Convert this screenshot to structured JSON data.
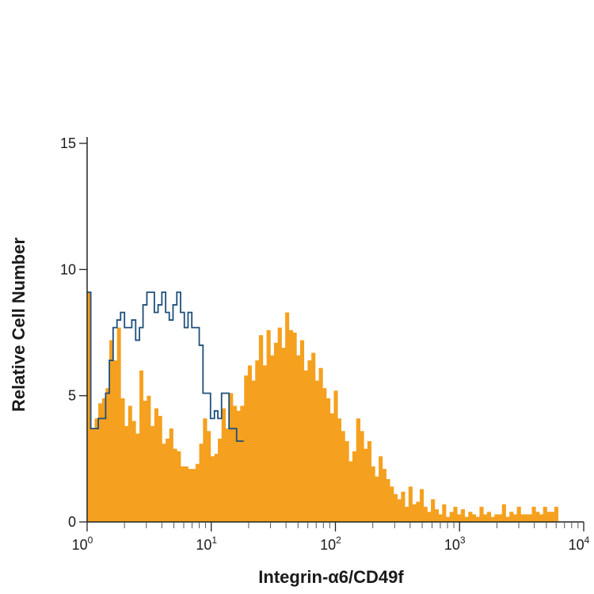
{
  "chart_data": {
    "type": "histogram",
    "xlabel": "Integrin-α6/CD49f",
    "ylabel": "Relative Cell Number",
    "x_scale": "log",
    "xlim": [
      1,
      10000
    ],
    "ylim": [
      0,
      15
    ],
    "x_ticks": [
      {
        "base": "10",
        "exp": "0",
        "value": 1
      },
      {
        "base": "10",
        "exp": "1",
        "value": 10
      },
      {
        "base": "10",
        "exp": "2",
        "value": 100
      },
      {
        "base": "10",
        "exp": "3",
        "value": 1000
      },
      {
        "base": "10",
        "exp": "4",
        "value": 10000
      }
    ],
    "y_ticks": [
      {
        "label": "0",
        "value": 0
      },
      {
        "label": "5",
        "value": 5
      },
      {
        "label": "10",
        "value": 10
      },
      {
        "label": "15",
        "value": 15
      }
    ],
    "grid": false,
    "legend": "none",
    "series": [
      {
        "style": "filled",
        "color": "#F5A01E",
        "x": [
          1.0,
          1.07,
          1.15,
          1.23,
          1.32,
          1.41,
          1.51,
          1.62,
          1.74,
          1.86,
          2.0,
          2.14,
          2.29,
          2.46,
          2.64,
          2.82,
          3.03,
          3.24,
          3.48,
          3.73,
          4.0,
          4.29,
          4.59,
          4.92,
          5.28,
          5.66,
          6.07,
          6.5,
          6.97,
          7.47,
          8.0,
          8.58,
          9.2,
          9.86,
          10.6,
          11.3,
          12.1,
          13.0,
          13.9,
          14.9,
          16.0,
          17.1,
          18.4,
          19.7,
          21.1,
          22.6,
          24.2,
          26.0,
          27.9,
          29.9,
          32.0,
          34.3,
          36.8,
          39.4,
          42.2,
          45.3,
          48.5,
          52.0,
          55.7,
          59.7,
          64.0,
          68.6,
          73.5,
          78.8,
          84.4,
          90.5,
          97.0,
          104,
          111,
          119,
          128,
          137,
          147,
          158,
          169,
          181,
          194,
          208,
          223,
          239,
          256,
          274,
          294,
          315,
          338,
          362,
          388,
          416,
          446,
          478,
          512,
          549,
          588,
          630,
          676,
          724,
          776,
          832,
          891,
          955,
          1024,
          1098,
          1176,
          1261,
          1351,
          1448,
          1552,
          1663,
          1783,
          1911,
          2048,
          2195,
          2352,
          2521,
          2702,
          2896,
          3104,
          3327,
          3566,
          3822,
          4096,
          4390,
          4705,
          5043,
          5405,
          5793
        ],
        "y": [
          9.1,
          3.7,
          4.1,
          4.7,
          4.9,
          5.3,
          7.2,
          6.4,
          7.7,
          4.9,
          3.8,
          4.6,
          4.0,
          3.5,
          6.0,
          4.8,
          5.0,
          3.8,
          4.5,
          4.2,
          3.1,
          3.3,
          3.7,
          2.9,
          2.8,
          2.2,
          2.2,
          2.1,
          2.1,
          2.3,
          3.1,
          4.1,
          3.6,
          2.6,
          2.7,
          3.3,
          4.5,
          3.7,
          5.1,
          4.6,
          4.4,
          4.6,
          5.8,
          6.2,
          5.6,
          6.4,
          7.4,
          6.2,
          7.6,
          6.6,
          7.1,
          7.7,
          6.9,
          8.3,
          7.6,
          7.5,
          6.6,
          7.2,
          6.0,
          6.4,
          6.7,
          5.6,
          6.1,
          5.3,
          4.9,
          4.3,
          5.2,
          4.1,
          3.6,
          3.2,
          2.4,
          2.8,
          4.1,
          3.6,
          2.9,
          3.2,
          2.2,
          1.8,
          2.6,
          2.1,
          1.7,
          1.4,
          1.1,
          0.9,
          1.2,
          0.6,
          1.4,
          0.7,
          0.8,
          1.3,
          0.6,
          0.4,
          0.9,
          0.5,
          0.3,
          0.7,
          0.2,
          0.4,
          0.6,
          0.3,
          0.5,
          0.2,
          0.4,
          0.3,
          0.2,
          0.6,
          0.3,
          0.4,
          0.2,
          0.3,
          0.3,
          0.7,
          0.2,
          0.4,
          0.3,
          0.6,
          0.3,
          0.3,
          0.3,
          0.6,
          0.4,
          0.3,
          0.6,
          0.4,
          0.4,
          0.6
        ]
      },
      {
        "style": "outline",
        "color": "#1E4F7A",
        "x": [
          1.0,
          1.07,
          1.15,
          1.23,
          1.32,
          1.41,
          1.51,
          1.62,
          1.74,
          1.86,
          2.0,
          2.14,
          2.29,
          2.46,
          2.64,
          2.82,
          3.03,
          3.24,
          3.48,
          3.73,
          4.0,
          4.29,
          4.59,
          4.92,
          5.28,
          5.66,
          6.07,
          6.5,
          6.97,
          7.47,
          8.0,
          8.58,
          9.2,
          9.86,
          10.6,
          11.3,
          12.1,
          13.0,
          13.9,
          14.9,
          16.0,
          17.1
        ],
        "y": [
          9.1,
          3.7,
          3.7,
          4.1,
          4.1,
          5.1,
          6.4,
          7.7,
          8.0,
          8.3,
          7.7,
          7.7,
          8.0,
          7.2,
          7.7,
          8.6,
          9.1,
          9.1,
          8.3,
          8.6,
          9.1,
          8.3,
          8.0,
          8.6,
          9.1,
          8.3,
          7.7,
          8.3,
          7.7,
          7.7,
          7.0,
          5.1,
          5.1,
          4.1,
          4.4,
          4.1,
          5.1,
          5.1,
          3.7,
          3.7,
          3.2,
          3.2
        ]
      }
    ]
  }
}
